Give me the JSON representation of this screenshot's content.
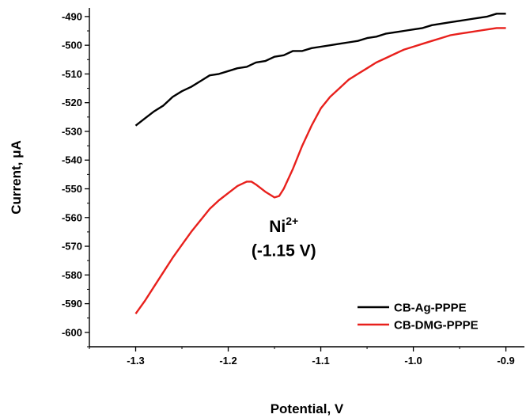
{
  "chart_data": {
    "type": "line",
    "title": "",
    "xlabel": "Potential, V",
    "ylabel": "Current, μA",
    "xlim": [
      -1.35,
      -0.88
    ],
    "ylim": [
      -605,
      -487
    ],
    "x_ticks": [
      -1.3,
      -1.2,
      -1.1,
      -1.0,
      -0.9
    ],
    "x_tick_labels": [
      "-1.3",
      "-1.2",
      "-1.1",
      "-1.0",
      "-0.9"
    ],
    "y_ticks": [
      -490,
      -500,
      -510,
      -520,
      -530,
      -540,
      -550,
      -560,
      -570,
      -580,
      -590,
      -600
    ],
    "y_tick_labels": [
      "-490",
      "-500",
      "-510",
      "-520",
      "-530",
      "-540",
      "-550",
      "-560",
      "-570",
      "-580",
      "-590",
      "-600"
    ],
    "grid": false,
    "legend_position": "bottom-right",
    "series": [
      {
        "name": "CB-Ag-PPPE",
        "color": "#000000",
        "x": [
          -1.3,
          -1.29,
          -1.28,
          -1.27,
          -1.26,
          -1.25,
          -1.24,
          -1.23,
          -1.22,
          -1.21,
          -1.2,
          -1.19,
          -1.18,
          -1.17,
          -1.16,
          -1.15,
          -1.14,
          -1.13,
          -1.12,
          -1.11,
          -1.1,
          -1.09,
          -1.08,
          -1.07,
          -1.06,
          -1.05,
          -1.04,
          -1.03,
          -1.02,
          -1.01,
          -1.0,
          -0.99,
          -0.98,
          -0.97,
          -0.96,
          -0.95,
          -0.94,
          -0.93,
          -0.92,
          -0.91,
          -0.9
        ],
        "y": [
          -528,
          -525.5,
          -523,
          -521,
          -518,
          -516,
          -514.5,
          -512.5,
          -510.5,
          -510,
          -509,
          -508,
          -507.5,
          -506,
          -505.5,
          -504,
          -503.5,
          -502,
          -502,
          -501,
          -500.5,
          -500,
          -499.5,
          -499,
          -498.5,
          -497.5,
          -497,
          -496,
          -495.5,
          -495,
          -494.5,
          -494,
          -493,
          -492.5,
          -492,
          -491.5,
          -491,
          -490.5,
          -490,
          -489,
          -489
        ]
      },
      {
        "name": "CB-DMG-PPPE",
        "color": "#e8201c",
        "x": [
          -1.3,
          -1.29,
          -1.28,
          -1.27,
          -1.26,
          -1.25,
          -1.24,
          -1.23,
          -1.22,
          -1.21,
          -1.2,
          -1.19,
          -1.18,
          -1.175,
          -1.17,
          -1.16,
          -1.15,
          -1.145,
          -1.14,
          -1.13,
          -1.12,
          -1.11,
          -1.1,
          -1.09,
          -1.08,
          -1.07,
          -1.06,
          -1.05,
          -1.04,
          -1.03,
          -1.02,
          -1.01,
          -1.0,
          -0.99,
          -0.98,
          -0.97,
          -0.96,
          -0.95,
          -0.94,
          -0.93,
          -0.92,
          -0.91,
          -0.9
        ],
        "y": [
          -593.5,
          -589,
          -584,
          -579,
          -574,
          -569.5,
          -565,
          -561,
          -557,
          -554,
          -551.5,
          -549,
          -547.5,
          -547.5,
          -548.5,
          -551,
          -553,
          -552.5,
          -550,
          -543,
          -535,
          -528,
          -522,
          -518,
          -515,
          -512,
          -510,
          -508,
          -506,
          -504.5,
          -503,
          -501.5,
          -500.5,
          -499.5,
          -498.5,
          -497.5,
          -496.5,
          -496,
          -495.5,
          -495,
          -494.5,
          -494,
          -494
        ]
      }
    ],
    "annotations": [
      {
        "text": "Ni",
        "superscript": "2+",
        "x": -1.14,
        "y": -565
      },
      {
        "text": "(-1.15 V)",
        "x": -1.14,
        "y": -573.5
      }
    ]
  }
}
